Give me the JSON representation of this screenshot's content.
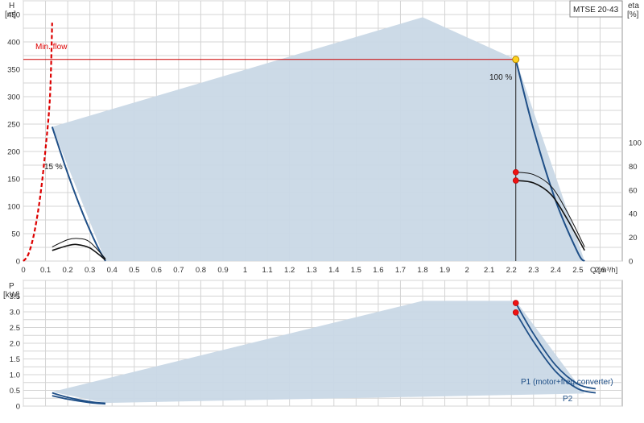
{
  "chart_data": [
    {
      "id": "head_eta",
      "type": "line",
      "legend_box": "MTSE 20-43",
      "y_axis_label": "H",
      "y_axis_unit": "[m]",
      "y2_axis_label": "eta",
      "y2_axis_unit": "[%]",
      "x_axis_label": "Q [m³/h]",
      "xlim": [
        0,
        2.7
      ],
      "ylim": [
        0,
        475
      ],
      "y2lim": [
        0,
        100
      ],
      "x_ticks": [
        "0",
        "0.1",
        "0.2",
        "0.3",
        "0.4",
        "0.5",
        "0.6",
        "0.7",
        "0.8",
        "0.9",
        "1",
        "1.1",
        "1.2",
        "1.3",
        "1.4",
        "1.5",
        "1.6",
        "1.7",
        "1.8",
        "1.9",
        "2",
        "2.1",
        "2.2",
        "2.3",
        "2.4",
        "2.5",
        "2.6"
      ],
      "y_ticks": [
        "0",
        "50",
        "100",
        "150",
        "200",
        "250",
        "300",
        "350",
        "400",
        "450"
      ],
      "y2_ticks": [
        "0",
        "20",
        "40",
        "60",
        "80",
        "100"
      ],
      "grid": true,
      "annotations": {
        "min_flow": "Min. flow",
        "speed_100": "100 %",
        "speed_15": "15 %"
      },
      "operating_area": {
        "x": [
          0.13,
          1.8,
          2.22,
          2.53,
          0.37
        ],
        "y": [
          245,
          445,
          368,
          0,
          0
        ]
      },
      "duty_point": {
        "x": 2.22,
        "y": 368
      },
      "duty_line_color": "#cc0000",
      "area_color": "#c9d8e6",
      "curve_color": "#1f4f87",
      "min_flow_color": "#dd0000",
      "series": [
        {
          "role": "min_flow_curve",
          "x": [
            0,
            0.02,
            0.04,
            0.06,
            0.08,
            0.1,
            0.12,
            0.13
          ],
          "y": [
            0,
            10,
            35,
            75,
            130,
            205,
            300,
            435
          ]
        },
        {
          "role": "head_100",
          "x": [
            2.22,
            2.3,
            2.4,
            2.5,
            2.53
          ],
          "y": [
            368,
            240,
            110,
            15,
            0
          ]
        },
        {
          "role": "head_15",
          "x": [
            0.13,
            0.2,
            0.27,
            0.33,
            0.37
          ],
          "y": [
            245,
            160,
            85,
            30,
            0
          ]
        },
        {
          "role": "eta_100_a",
          "x": [
            2.22,
            2.3,
            2.38,
            2.45,
            2.53
          ],
          "y2": [
            75,
            73,
            63,
            42,
            12
          ]
        },
        {
          "role": "eta_100_b",
          "x": [
            2.22,
            2.3,
            2.38,
            2.45,
            2.53
          ],
          "y2": [
            68,
            66,
            56,
            36,
            9
          ]
        },
        {
          "role": "eta_15_a",
          "x": [
            0.13,
            0.2,
            0.25,
            0.3,
            0.37
          ],
          "y2": [
            12,
            18,
            19,
            16,
            2
          ]
        },
        {
          "role": "eta_15_b",
          "x": [
            0.13,
            0.2,
            0.24,
            0.3,
            0.37
          ],
          "y2": [
            9,
            13,
            14,
            11,
            1
          ]
        }
      ],
      "duty_markers_y2": [
        75,
        68
      ]
    },
    {
      "id": "power",
      "type": "line",
      "y_axis_label": "P",
      "y_axis_unit": "[kW]",
      "xlim": [
        0,
        2.7
      ],
      "ylim": [
        0,
        4.0
      ],
      "y_ticks": [
        "0",
        "0.5",
        "1.0",
        "1.5",
        "2.0",
        "2.5",
        "3.0",
        "3.5"
      ],
      "grid": true,
      "operating_area": {
        "x": [
          0.13,
          1.8,
          2.22,
          2.53,
          0.37
        ],
        "y": [
          0.45,
          3.35,
          3.35,
          0.4,
          0.1
        ]
      },
      "series": [
        {
          "name": "P1 (motor+freq.converter)",
          "x": [
            2.22,
            2.3,
            2.4,
            2.5,
            2.58
          ],
          "y": [
            3.28,
            2.3,
            1.3,
            0.7,
            0.55
          ]
        },
        {
          "name": "P2",
          "x": [
            2.22,
            2.3,
            2.4,
            2.5,
            2.58
          ],
          "y": [
            2.98,
            2.05,
            1.1,
            0.55,
            0.42
          ]
        },
        {
          "role": "p1_15",
          "x": [
            0.13,
            0.2,
            0.3,
            0.37
          ],
          "y": [
            0.42,
            0.28,
            0.14,
            0.09
          ]
        },
        {
          "role": "p2_15",
          "x": [
            0.13,
            0.2,
            0.3,
            0.37
          ],
          "y": [
            0.33,
            0.22,
            0.11,
            0.07
          ]
        }
      ],
      "duty_markers": [
        3.28,
        2.98
      ]
    }
  ]
}
